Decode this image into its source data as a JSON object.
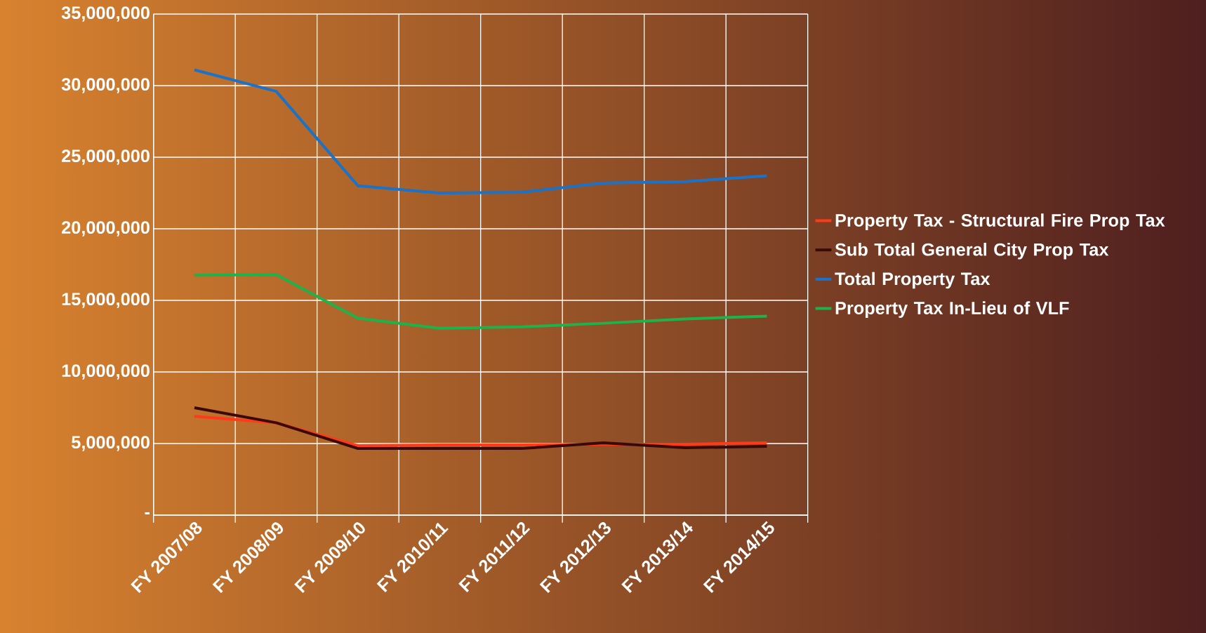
{
  "chart_data": {
    "type": "line",
    "categories": [
      "FY 2007/08",
      "FY 2008/09",
      "FY 2009/10",
      "FY 2010/11",
      "FY 2011/12",
      "FY 2012/13",
      "FY 2013/14",
      "FY 2014/15"
    ],
    "series": [
      {
        "name": "Property Tax - Structural Fire Prop Tax",
        "color": "#ff3a1a",
        "values": [
          6900000,
          6450000,
          4850000,
          4900000,
          4900000,
          4950000,
          4950000,
          5050000
        ]
      },
      {
        "name": "Sub Total General City Prop Tax",
        "color": "#3a0a0a",
        "values": [
          7500000,
          6450000,
          4650000,
          4650000,
          4650000,
          5050000,
          4700000,
          4800000
        ]
      },
      {
        "name": "Total Property Tax",
        "color": "#1a73c8",
        "values": [
          31100000,
          29600000,
          23000000,
          22500000,
          22550000,
          23200000,
          23300000,
          23700000
        ]
      },
      {
        "name": "Property Tax In-Lieu of VLF",
        "color": "#1db34a",
        "values": [
          16750000,
          16800000,
          13750000,
          13050000,
          13150000,
          13400000,
          13700000,
          13900000
        ]
      }
    ],
    "ylim": [
      0,
      35000000
    ],
    "yticks": [
      {
        "value": 0,
        "label": "-"
      },
      {
        "value": 5000000,
        "label": "5,000,000"
      },
      {
        "value": 10000000,
        "label": "10,000,000"
      },
      {
        "value": 15000000,
        "label": "15,000,000"
      },
      {
        "value": 20000000,
        "label": "20,000,000"
      },
      {
        "value": 25000000,
        "label": "25,000,000"
      },
      {
        "value": 30000000,
        "label": "30,000,000"
      },
      {
        "value": 35000000,
        "label": "35,000,000"
      }
    ],
    "grid": true,
    "legend": "right",
    "marker": "none",
    "line_style": "solid"
  }
}
